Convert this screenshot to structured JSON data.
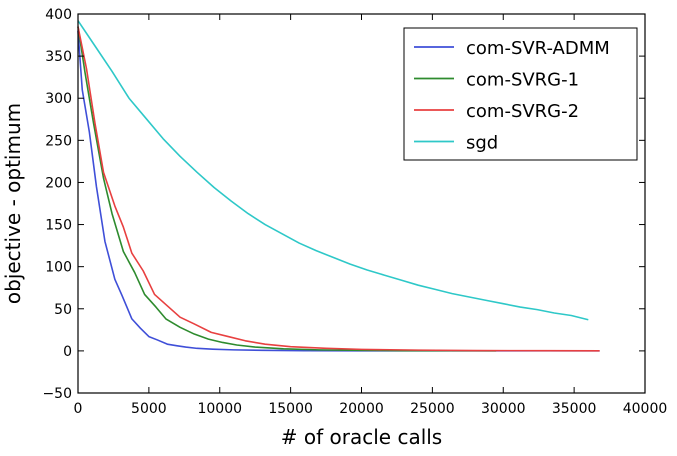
{
  "chart_data": {
    "type": "line",
    "title": "",
    "xlabel": "# of oracle calls",
    "ylabel": "objective - optimum",
    "xlim": [
      0,
      40000
    ],
    "ylim": [
      -50,
      400
    ],
    "xticks": [
      "0",
      "5000",
      "10000",
      "15000",
      "20000",
      "25000",
      "30000",
      "35000",
      "40000"
    ],
    "yticks": [
      "−50",
      "0",
      "50",
      "100",
      "150",
      "200",
      "250",
      "300",
      "350",
      "400"
    ],
    "grid": false,
    "legend_position": "top-right",
    "series": [
      {
        "name": "com-SVR-ADMM",
        "color": "#3f4fd8",
        "x": [
          0,
          300,
          800,
          1300,
          1900,
          2600,
          3100,
          3800,
          4400,
          5000,
          5600,
          6300,
          7000,
          7600,
          8400,
          9500,
          11000,
          13000,
          16000,
          20000,
          25000,
          30000,
          36800
        ],
        "y": [
          380,
          310,
          260,
          195,
          130,
          85,
          66,
          38,
          27,
          17,
          13,
          8,
          6,
          4.5,
          3,
          2,
          1.2,
          0.7,
          0.3,
          0.1,
          0.05,
          0.02,
          0.01
        ]
      },
      {
        "name": "com-SVRG-1",
        "color": "#2e8b2e",
        "x": [
          0,
          500,
          1100,
          1800,
          2400,
          3200,
          4000,
          4700,
          5500,
          6200,
          7200,
          8200,
          9200,
          10200,
          11200,
          12500,
          14500,
          17000,
          20000,
          23000,
          26000,
          29500
        ],
        "y": [
          385,
          330,
          270,
          205,
          163,
          118,
          93,
          67,
          52,
          38,
          28,
          20,
          14,
          10,
          7,
          4.5,
          2.5,
          1.2,
          0.6,
          0.3,
          0.15,
          0.05
        ]
      },
      {
        "name": "com-SVRG-2",
        "color": "#e84040",
        "x": [
          0,
          600,
          1200,
          1800,
          2600,
          3200,
          3800,
          4600,
          5400,
          6200,
          7200,
          8200,
          9400,
          10600,
          11800,
          13200,
          15000,
          17500,
          20000,
          24000,
          28000,
          33000,
          36800
        ],
        "y": [
          385,
          335,
          270,
          212,
          172,
          147,
          116,
          95,
          67,
          55,
          40,
          32,
          22,
          17,
          12,
          8,
          5,
          3,
          1.8,
          0.9,
          0.4,
          0.2,
          0.1
        ]
      },
      {
        "name": "sgd",
        "color": "#2ec8c8",
        "x": [
          0,
          1200,
          2400,
          3600,
          4800,
          6000,
          7200,
          8400,
          9600,
          10800,
          12000,
          13200,
          14400,
          15600,
          16800,
          18000,
          19200,
          20400,
          21600,
          22800,
          24000,
          25200,
          26400,
          27600,
          28800,
          30000,
          31200,
          32400,
          33600,
          34800,
          36000
        ],
        "y": [
          392,
          362,
          332,
          300,
          276,
          252,
          231,
          212,
          194,
          178,
          163,
          150,
          139,
          128,
          119,
          111,
          103,
          96,
          90,
          84,
          78,
          73,
          68,
          64,
          60,
          56,
          52,
          49,
          45,
          42,
          37
        ]
      }
    ]
  }
}
